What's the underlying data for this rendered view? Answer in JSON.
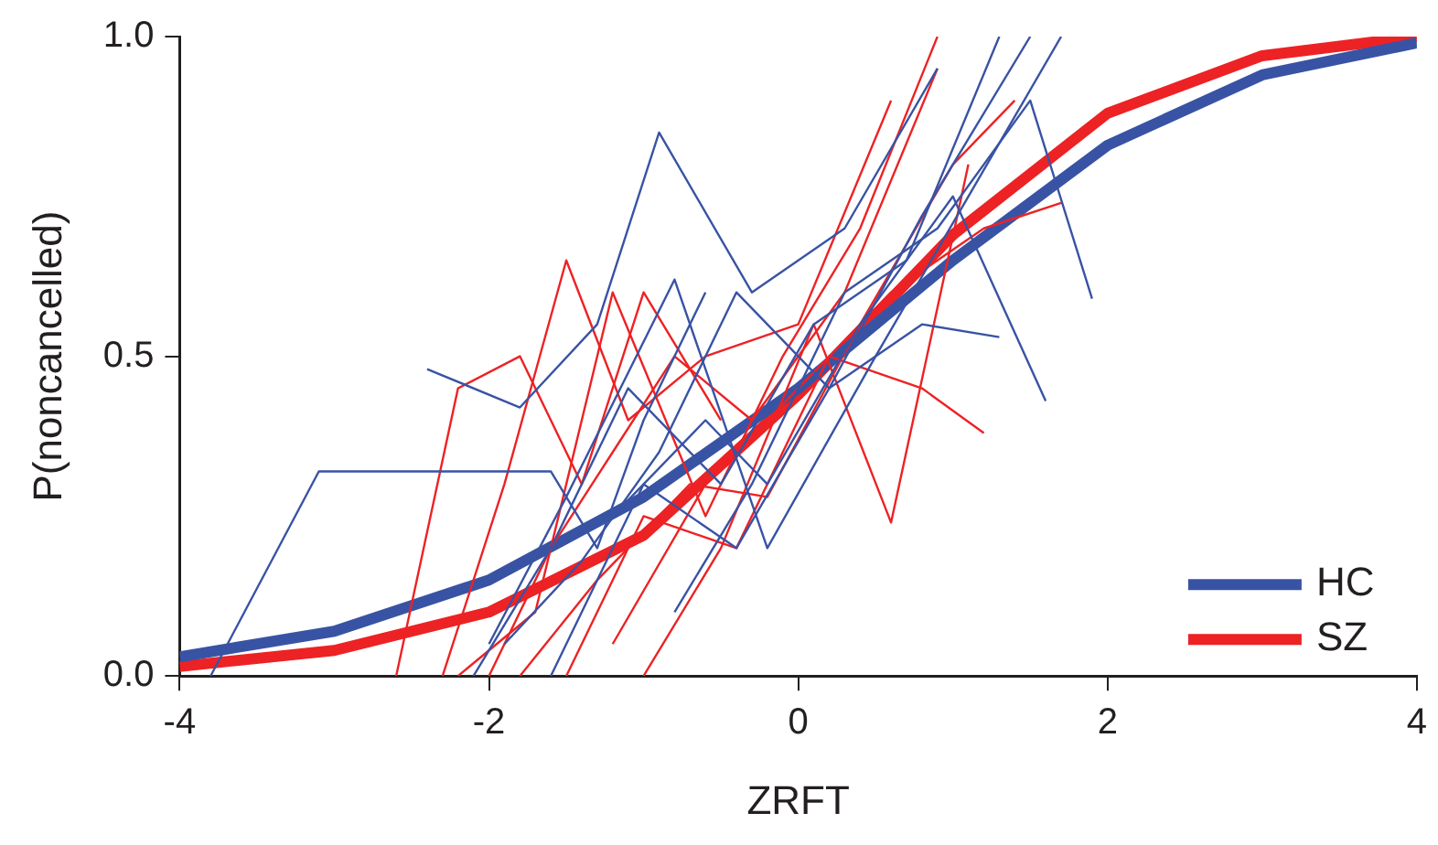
{
  "chart_data": {
    "type": "line",
    "xlabel": "ZRFT",
    "ylabel": "P(noncancelled)",
    "xlim": [
      -4,
      4
    ],
    "xticks": [
      -4,
      -2,
      0,
      2,
      4
    ],
    "ylim": [
      0,
      1
    ],
    "yticks": [
      {
        "value": 0,
        "label": "0.0"
      },
      {
        "value": 0.5,
        "label": "0.5"
      },
      {
        "value": 1,
        "label": "1.0"
      }
    ],
    "grid": false,
    "legend": "bottom right",
    "marker": "none",
    "line_style": "solid",
    "series": [
      {
        "color": "#3953a4",
        "x": [
          -3.8,
          -3.1,
          -1.6,
          -1.3,
          -1.0,
          -0.6
        ],
        "values": [
          0.0,
          0.32,
          0.32,
          0.2,
          0.4,
          0.6
        ]
      },
      {
        "color": "#3953a4",
        "x": [
          -2.4,
          -1.8,
          -1.3,
          -0.9,
          -0.3,
          0.3,
          0.9
        ],
        "values": [
          0.48,
          0.42,
          0.55,
          0.85,
          0.6,
          0.7,
          0.95
        ]
      },
      {
        "color": "#3953a4",
        "x": [
          -2.1,
          -1.6,
          -1.1,
          -0.5,
          0.1,
          0.7,
          1.3
        ],
        "values": [
          0.0,
          0.2,
          0.45,
          0.3,
          0.55,
          0.65,
          1.0
        ]
      },
      {
        "color": "#3953a4",
        "x": [
          -1.9,
          -1.4,
          -0.9,
          -0.4,
          0.2,
          0.8,
          1.5
        ],
        "values": [
          0.05,
          0.18,
          0.35,
          0.6,
          0.45,
          0.72,
          1.0
        ]
      },
      {
        "color": "#3953a4",
        "x": [
          -1.2,
          -0.6,
          -0.2,
          0.4,
          1.0,
          1.6
        ],
        "values": [
          0.25,
          0.4,
          0.3,
          0.55,
          0.75,
          0.43
        ]
      },
      {
        "color": "#3953a4",
        "x": [
          -0.8,
          -0.3,
          0.3,
          0.9,
          1.5,
          1.9
        ],
        "values": [
          0.1,
          0.3,
          0.6,
          0.7,
          0.9,
          0.59
        ]
      },
      {
        "color": "#3953a4",
        "x": [
          -2.0,
          -1.5,
          -0.8,
          -0.2,
          0.5,
          1.1,
          1.7
        ],
        "values": [
          0.05,
          0.28,
          0.62,
          0.2,
          0.5,
          0.75,
          1.0
        ]
      },
      {
        "color": "#3953a4",
        "x": [
          -1.6,
          -1.0,
          -0.4,
          0.2,
          0.8,
          1.3
        ],
        "values": [
          0.0,
          0.3,
          0.2,
          0.45,
          0.55,
          0.53
        ]
      },
      {
        "color": "#ed2224",
        "x": [
          -2.6,
          -2.2,
          -1.8,
          -1.4,
          -1.0,
          -0.5
        ],
        "values": [
          0.0,
          0.45,
          0.5,
          0.3,
          0.6,
          0.4
        ]
      },
      {
        "color": "#ed2224",
        "x": [
          -2.3,
          -1.9,
          -1.5,
          -1.1,
          -0.6,
          0.0,
          0.6
        ],
        "values": [
          0.0,
          0.3,
          0.65,
          0.4,
          0.5,
          0.55,
          0.9
        ]
      },
      {
        "color": "#ed2224",
        "x": [
          -2.0,
          -1.6,
          -1.2,
          -0.8,
          -0.3,
          0.3,
          0.9
        ],
        "values": [
          0.0,
          0.2,
          0.35,
          0.5,
          0.4,
          0.6,
          0.95
        ]
      },
      {
        "color": "#ed2224",
        "x": [
          -1.8,
          -1.3,
          -0.7,
          -0.2,
          0.4,
          1.0,
          1.4
        ],
        "values": [
          0.0,
          0.15,
          0.3,
          0.28,
          0.55,
          0.8,
          0.9
        ]
      },
      {
        "color": "#ed2224",
        "x": [
          -1.5,
          -1.0,
          -0.4,
          0.2,
          0.8,
          1.2
        ],
        "values": [
          0.0,
          0.25,
          0.2,
          0.5,
          0.45,
          0.38
        ]
      },
      {
        "color": "#ed2224",
        "x": [
          -1.2,
          -0.6,
          0.0,
          0.6,
          1.2,
          1.7
        ],
        "values": [
          0.05,
          0.3,
          0.45,
          0.6,
          0.7,
          0.74
        ]
      },
      {
        "color": "#ed2224",
        "x": [
          -1.0,
          -0.5,
          0.1,
          0.6,
          1.1
        ],
        "values": [
          0.0,
          0.2,
          0.55,
          0.24,
          0.8
        ]
      },
      {
        "color": "#ed2224",
        "x": [
          -2.2,
          -1.7,
          -1.2,
          -0.6,
          -0.1,
          0.4,
          0.9
        ],
        "values": [
          0.0,
          0.1,
          0.6,
          0.25,
          0.5,
          0.7,
          1.0
        ]
      },
      {
        "name": "HC",
        "color": "#3953a4",
        "x": [
          -4,
          -3,
          -2,
          -1,
          0,
          1,
          2,
          3,
          4
        ],
        "values": [
          0.03,
          0.07,
          0.15,
          0.28,
          0.45,
          0.65,
          0.83,
          0.94,
          0.99
        ]
      },
      {
        "name": "SZ",
        "color": "#ed2224",
        "x": [
          -4,
          -3,
          -2,
          -1,
          0,
          1,
          2,
          3,
          4
        ],
        "values": [
          0.015,
          0.04,
          0.1,
          0.22,
          0.44,
          0.69,
          0.88,
          0.97,
          1.0
        ]
      }
    ]
  }
}
